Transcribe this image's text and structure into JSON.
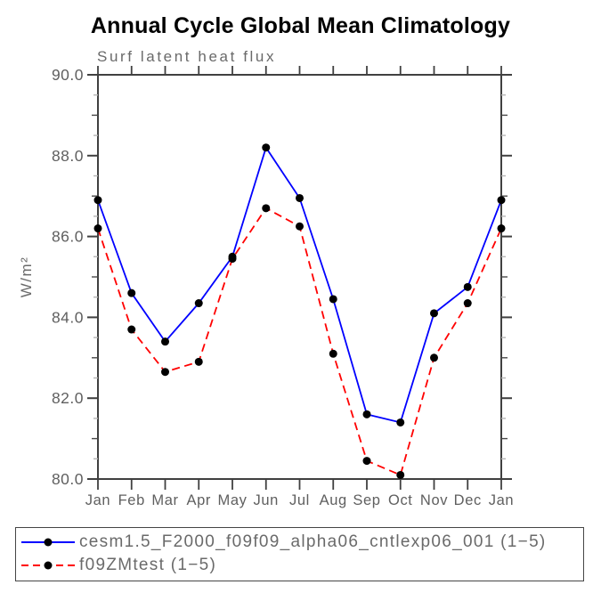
{
  "chart_data": {
    "type": "line",
    "title": "Annual Cycle Global Mean Climatology",
    "subtitle": "Surf latent heat flux",
    "ylabel": "W/m²",
    "xlabel": "",
    "ylim": [
      80.0,
      90.0
    ],
    "ytick_major_step": 2.0,
    "ytick_minor_step": 0.5,
    "ytick_labels": [
      "80.0",
      "82.0",
      "84.0",
      "86.0",
      "88.0",
      "90.0"
    ],
    "categories": [
      "Jan",
      "Feb",
      "Mar",
      "Apr",
      "May",
      "Jun",
      "Jul",
      "Aug",
      "Sep",
      "Oct",
      "Nov",
      "Dec",
      "Jan"
    ],
    "grid": false,
    "legend_position": "bottom-left-box",
    "axis_color": "#404040",
    "label_color": "#5f5f5f",
    "marker_color": "#000000",
    "series": [
      {
        "name": "cesm1.5_F2000_f09f09_alpha06_cntlexp06_001",
        "legend_label": "cesm1.5_F2000_f09f09_alpha06_cntlexp06_001 (1−5)",
        "color": "#0000ff",
        "line_style": "solid",
        "marker": "filled-circle",
        "values": [
          86.9,
          84.6,
          83.4,
          84.35,
          85.5,
          88.2,
          86.95,
          84.45,
          81.6,
          81.4,
          84.1,
          84.75,
          86.9
        ]
      },
      {
        "name": "f09ZMtest",
        "legend_label": "f09ZMtest (1−5)",
        "color": "#ff0000",
        "line_style": "dashed",
        "marker": "filled-circle",
        "values": [
          86.2,
          83.7,
          82.65,
          82.9,
          85.45,
          86.7,
          86.25,
          83.1,
          80.45,
          80.1,
          83.0,
          84.35,
          86.2
        ]
      }
    ]
  }
}
